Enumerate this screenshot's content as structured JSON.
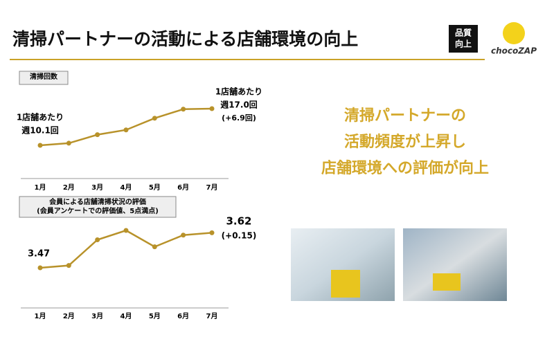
{
  "title": "清掃パートナーの活動による店舗環境の向上",
  "badge": [
    "品質",
    "向上"
  ],
  "logo": "chocoZAP",
  "message": [
    "清掃パートナーの",
    "活動頻度が上昇し",
    "店舗環境への評価が向上"
  ],
  "chart_data": [
    {
      "type": "line",
      "title": [
        "清掃回数"
      ],
      "color": "#b8922a",
      "categories": [
        "1月",
        "2月",
        "3月",
        "4月",
        "5月",
        "6月",
        "7月"
      ],
      "values": [
        10.1,
        10.5,
        12.1,
        13.0,
        15.2,
        16.9,
        17.0
      ],
      "annotations": [
        {
          "lines": [
            "1店舗あたり",
            "週10.1回"
          ]
        },
        {
          "lines": [
            "1店舗あたり",
            "週17.0回",
            "(+6.9回)"
          ]
        }
      ]
    },
    {
      "type": "line",
      "title": [
        "会員による店舗清掃状況の評価",
        "(会員アンケートでの評価値、5点満点)"
      ],
      "color": "#b8922a",
      "categories": [
        "1月",
        "2月",
        "3月",
        "4月",
        "5月",
        "6月",
        "7月"
      ],
      "values": [
        3.47,
        3.48,
        3.59,
        3.63,
        3.56,
        3.61,
        3.62
      ],
      "annotations": [
        {
          "lines": [
            "(+0.15)"
          ]
        }
      ]
    }
  ]
}
